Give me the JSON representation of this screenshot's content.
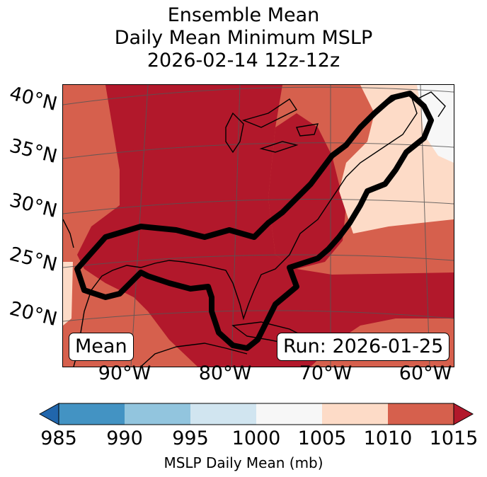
{
  "title": {
    "line1": "Ensemble Mean",
    "line2": "Daily Mean Minimum MSLP",
    "line3": "2026-02-14 12z-12z"
  },
  "map": {
    "lat_labels": [
      "40°N",
      "35°N",
      "30°N",
      "25°N",
      "20°N"
    ],
    "lon_labels": [
      "90°W",
      "80°W",
      "70°W",
      "60°W"
    ],
    "badge_left": "Mean",
    "badge_right": "Run: 2026-01-25"
  },
  "colorbar": {
    "ticks": [
      "985",
      "990",
      "995",
      "1000",
      "1005",
      "1010",
      "1015"
    ],
    "label": "MSLP Daily Mean (mb)",
    "colors": {
      "under": "#2166ac",
      "c985_990": "#4393c3",
      "c990_995": "#92c5de",
      "c995_1000": "#d1e5f0",
      "c1000_1005": "#f7f7f7",
      "c1005_1010": "#fddbc7",
      "c1010_1015": "#d6604d",
      "over": "#b2182b"
    }
  }
}
